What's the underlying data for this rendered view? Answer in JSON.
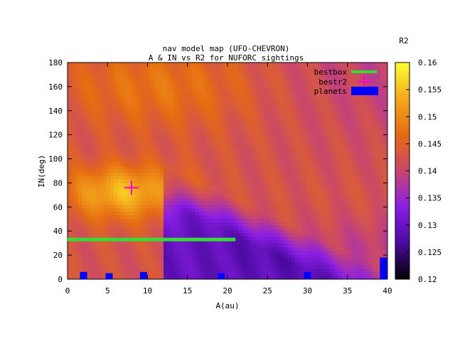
{
  "chart_data": {
    "type": "heatmap",
    "title": "nav model map (UFO-CHEVRON)",
    "subtitle": "A & IN vs R2 for NUFORC sightings",
    "xlabel": "A(au)",
    "ylabel": "IN(deg)",
    "colorbar_label": "R2",
    "xlim": [
      0,
      40
    ],
    "ylim": [
      0,
      180
    ],
    "zlim": [
      0.12,
      0.16
    ],
    "x_ticks": [
      0,
      5,
      10,
      15,
      20,
      25,
      30,
      35,
      40
    ],
    "y_ticks": [
      0,
      20,
      40,
      60,
      80,
      100,
      120,
      140,
      160,
      180
    ],
    "z_ticks": [
      0.12,
      0.125,
      0.13,
      0.135,
      0.14,
      0.145,
      0.15,
      0.155,
      0.16
    ],
    "z_tick_labels": [
      "0.12",
      "0.125",
      "0.13",
      "0.135",
      "0.14",
      "0.145",
      "0.15",
      "0.155",
      "0.16"
    ],
    "colormap": [
      "#000000",
      "#4b0aa0",
      "#8a1ee6",
      "#c8466e",
      "#e66b12",
      "#f3a91b",
      "#ffff33"
    ],
    "legend": [
      {
        "label": "bestbox",
        "color": "#33dd33",
        "kind": "line"
      },
      {
        "label": "bestr2",
        "color": "#ff00cc",
        "kind": "cross"
      },
      {
        "label": "planets",
        "color": "#0000ff",
        "kind": "box"
      }
    ],
    "legend_position": "top-right",
    "bestbox": {
      "x": [
        0,
        21
      ],
      "y": 33
    },
    "bestr2": {
      "x": 8,
      "y": 76
    },
    "planets": [
      {
        "x": 2.0,
        "y": 6
      },
      {
        "x": 5.2,
        "y": 5
      },
      {
        "x": 9.5,
        "y": 6
      },
      {
        "x": 19.2,
        "y": 5
      },
      {
        "x": 30.0,
        "y": 6
      },
      {
        "x": 39.5,
        "y": 18
      }
    ]
  }
}
